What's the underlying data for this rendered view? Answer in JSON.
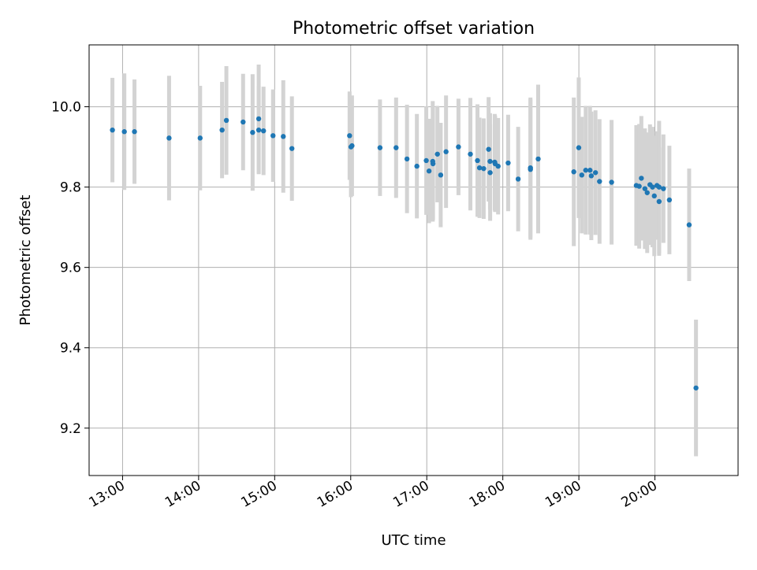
{
  "chart_data": {
    "type": "scatter",
    "title": "Photometric offset variation",
    "xlabel": "UTC time",
    "ylabel": "Photometric offset",
    "x_unit": "minutes after midnight UTC",
    "xlim": [
      753.6,
      1265.6
    ],
    "ylim": [
      9.082,
      10.154
    ],
    "x_ticks": [
      {
        "value": 780,
        "label": "13:00"
      },
      {
        "value": 840,
        "label": "14:00"
      },
      {
        "value": 900,
        "label": "15:00"
      },
      {
        "value": 960,
        "label": "16:00"
      },
      {
        "value": 1020,
        "label": "17:00"
      },
      {
        "value": 1080,
        "label": "18:00"
      },
      {
        "value": 1140,
        "label": "19:00"
      },
      {
        "value": 1200,
        "label": "20:00"
      }
    ],
    "y_ticks": [
      {
        "value": 9.2,
        "label": "9.2"
      },
      {
        "value": 9.4,
        "label": "9.4"
      },
      {
        "value": 9.6,
        "label": "9.6"
      },
      {
        "value": 9.8,
        "label": "9.8"
      },
      {
        "value": 10.0,
        "label": "10.0"
      }
    ],
    "grid": true,
    "colors": {
      "point": "#1f77b4",
      "errorbar": "#d3d3d3",
      "grid": "#b0b0b0"
    },
    "series": [
      {
        "x": [
          772.0,
          781.4,
          789.4,
          816.7,
          841.2,
          858.5,
          861.9,
          875.1,
          882.6,
          887.4,
          887.4,
          891.2,
          898.7,
          906.8,
          913.6,
          959.1,
          960.2,
          961.0,
          983.1,
          995.8,
          1004.4,
          1012.2,
          1019.6,
          1021.8,
          1024.7,
          1024.9,
          1028.4,
          1031.0,
          1035.2,
          1045.0,
          1054.4,
          1060.0,
          1061.6,
          1064.9,
          1068.8,
          1069.9,
          1070.0,
          1073.6,
          1073.9,
          1076.3,
          1084.2,
          1092.1,
          1101.8,
          1101.8,
          1107.9,
          1136.0,
          1139.9,
          1142.3,
          1145.4,
          1148.8,
          1149.8,
          1153.1,
          1156.3,
          1165.8,
          1185.3,
          1187.6,
          1189.3,
          1192.1,
          1193.9,
          1196.1,
          1198.1,
          1199.5,
          1201.6,
          1203.3,
          1203.3,
          1206.7,
          1211.4,
          1227.0,
          1232.4
        ],
        "y": [
          9.942,
          9.938,
          9.938,
          9.922,
          9.922,
          9.942,
          9.966,
          9.962,
          9.936,
          9.942,
          9.97,
          9.94,
          9.928,
          9.926,
          9.896,
          9.928,
          9.9,
          9.903,
          9.898,
          9.898,
          9.87,
          9.852,
          9.866,
          9.84,
          9.864,
          9.858,
          9.882,
          9.83,
          9.888,
          9.9,
          9.882,
          9.866,
          9.848,
          9.846,
          9.894,
          9.864,
          9.836,
          9.862,
          9.858,
          9.852,
          9.86,
          9.82,
          9.844,
          9.848,
          9.87,
          9.838,
          9.898,
          9.83,
          9.842,
          9.842,
          9.828,
          9.836,
          9.814,
          9.812,
          9.804,
          9.802,
          9.822,
          9.796,
          9.786,
          9.806,
          9.8,
          9.778,
          9.804,
          9.8,
          9.764,
          9.796,
          9.768,
          9.706,
          9.3
        ],
        "yerr": [
          0.13,
          0.145,
          0.13,
          0.155,
          0.13,
          0.12,
          0.135,
          0.12,
          0.145,
          0.11,
          0.135,
          0.11,
          0.115,
          0.14,
          0.13,
          0.11,
          0.125,
          0.125,
          0.12,
          0.125,
          0.135,
          0.13,
          0.135,
          0.13,
          0.15,
          0.14,
          0.12,
          0.13,
          0.14,
          0.12,
          0.14,
          0.14,
          0.125,
          0.125,
          0.13,
          0.12,
          0.12,
          0.12,
          0.12,
          0.12,
          0.12,
          0.13,
          0.175,
          0.175,
          0.185,
          0.185,
          0.175,
          0.145,
          0.16,
          0.16,
          0.16,
          0.155,
          0.155,
          0.155,
          0.15,
          0.155,
          0.155,
          0.15,
          0.15,
          0.15,
          0.15,
          0.15,
          0.135,
          0.165,
          0.135,
          0.135,
          0.135,
          0.14,
          0.17
        ]
      }
    ]
  }
}
